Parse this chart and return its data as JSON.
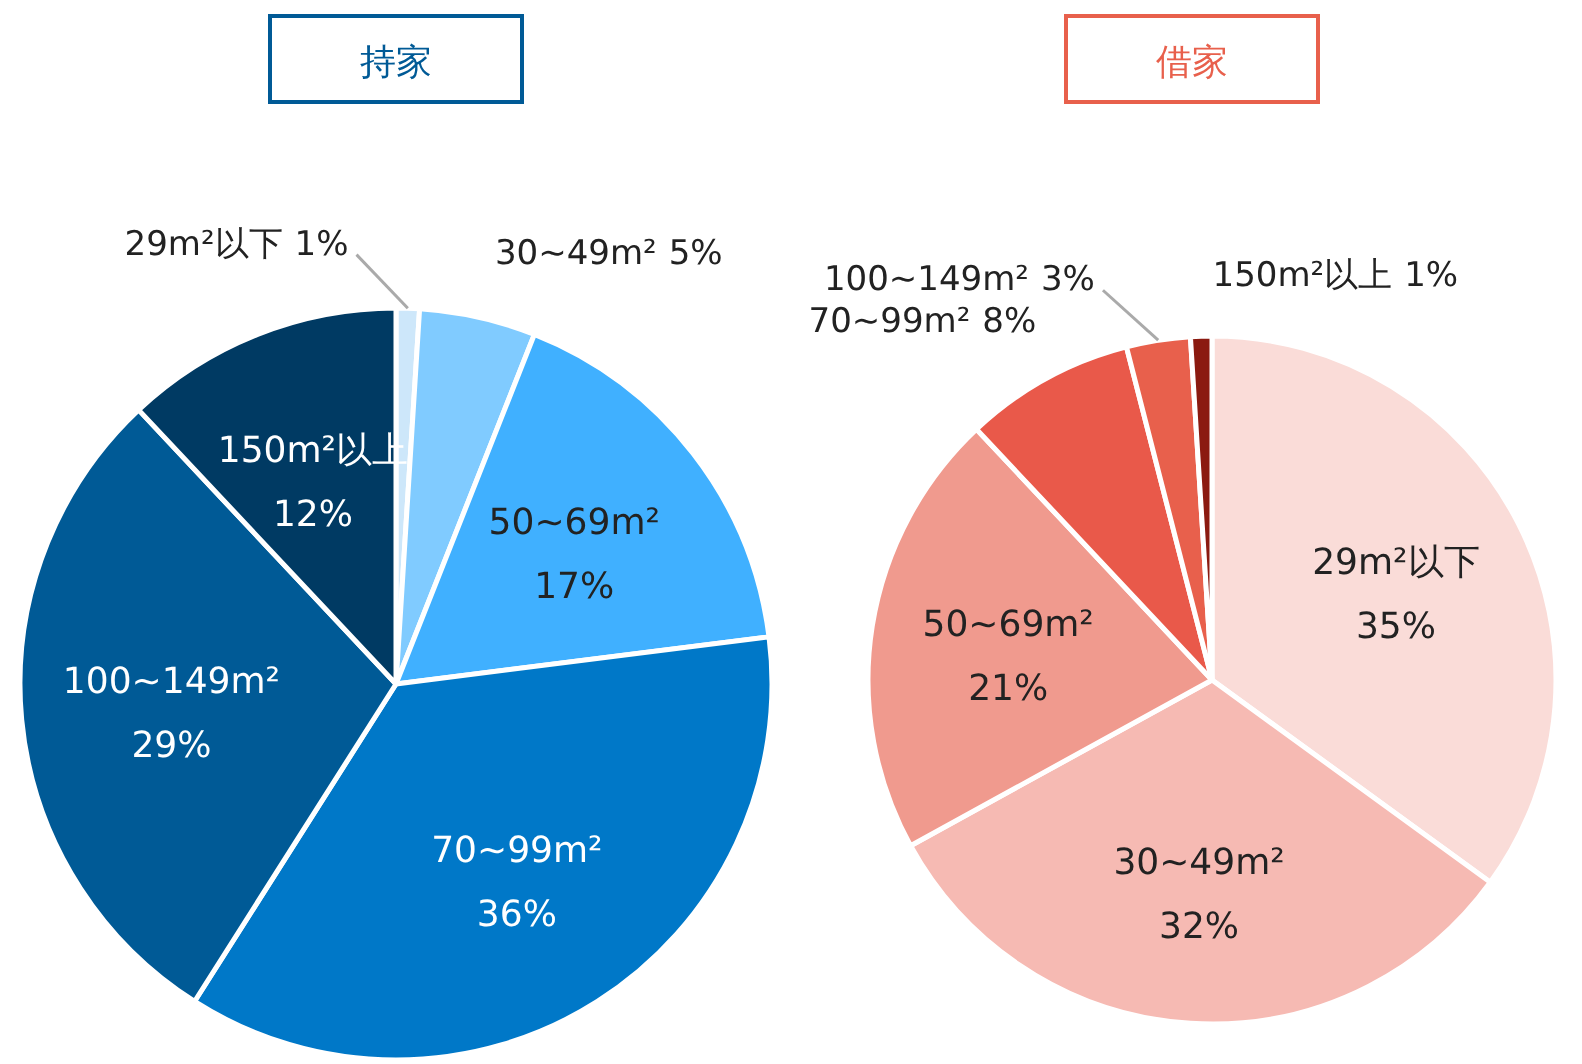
{
  "chart_data": [
    {
      "type": "pie",
      "title": "持家",
      "categories": [
        "29m²以下",
        "30~49m²",
        "50~69m²",
        "70~99m²",
        "100~149m²",
        "150m²以上"
      ],
      "values": [
        1,
        5,
        17,
        36,
        29,
        12
      ],
      "colors": [
        "#cde7fa",
        "#80cbff",
        "#40b0ff",
        "#0078c8",
        "#005a96",
        "#003a63"
      ],
      "value_labels": [
        "1%",
        "5%",
        "17%",
        "36%",
        "29%",
        "12%"
      ]
    },
    {
      "type": "pie",
      "title": "借家",
      "categories": [
        "29m²以下",
        "30~49m²",
        "50~69m²",
        "70~99m²",
        "100~149m²",
        "150m²以上"
      ],
      "values": [
        35,
        32,
        21,
        8,
        3,
        1
      ],
      "colors": [
        "#fadcd8",
        "#f6bab3",
        "#f09a8e",
        "#e9594a",
        "#e8604c",
        "#8b1a10"
      ],
      "value_labels": [
        "35%",
        "32%",
        "21%",
        "8%",
        "3%",
        "1%"
      ]
    }
  ]
}
